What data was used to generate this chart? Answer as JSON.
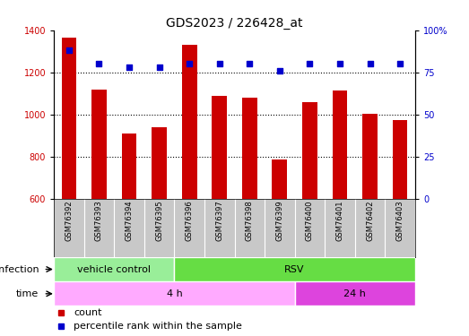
{
  "title": "GDS2023 / 226428_at",
  "samples": [
    "GSM76392",
    "GSM76393",
    "GSM76394",
    "GSM76395",
    "GSM76396",
    "GSM76397",
    "GSM76398",
    "GSM76399",
    "GSM76400",
    "GSM76401",
    "GSM76402",
    "GSM76403"
  ],
  "counts": [
    1365,
    1120,
    910,
    940,
    1330,
    1090,
    1080,
    790,
    1060,
    1115,
    1005,
    975
  ],
  "percentile_ranks": [
    88,
    80,
    78,
    78,
    80,
    80,
    80,
    76,
    80,
    80,
    80,
    80
  ],
  "ylim_left": [
    600,
    1400
  ],
  "ylim_right": [
    0,
    100
  ],
  "yticks_left": [
    600,
    800,
    1000,
    1200,
    1400
  ],
  "yticks_right": [
    0,
    25,
    50,
    75,
    100
  ],
  "ytick_right_labels": [
    "0",
    "25",
    "50",
    "75",
    "100%"
  ],
  "infection_groups": [
    {
      "label": "vehicle control",
      "span": 4,
      "color": "#99EE99"
    },
    {
      "label": "RSV",
      "span": 8,
      "color": "#66DD44"
    }
  ],
  "time_groups": [
    {
      "label": "4 h",
      "span": 8,
      "color": "#FFAAFF"
    },
    {
      "label": "24 h",
      "span": 4,
      "color": "#DD44DD"
    }
  ],
  "bar_color": "#CC0000",
  "dot_color": "#0000CC",
  "background_color": "#FFFFFF",
  "label_bg": "#C8C8C8",
  "title_fontsize": 10,
  "tick_fontsize": 7,
  "label_fontsize": 8,
  "legend_fontsize": 8
}
